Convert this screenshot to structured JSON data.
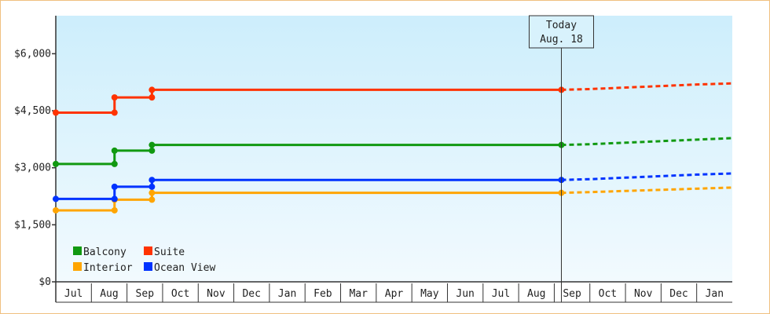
{
  "chart_data": {
    "type": "line",
    "title": "",
    "xlabel": "",
    "ylabel": "",
    "ylim": [
      0,
      7000
    ],
    "y_ticks": [
      0,
      1500,
      3000,
      4500,
      6000
    ],
    "y_tick_labels": [
      "$0",
      "$1,500",
      "$3,000",
      "$4,500",
      "$6,000"
    ],
    "x_tick_labels": [
      "Jul",
      "Aug",
      "Sep",
      "Oct",
      "Nov",
      "Dec",
      "Jan",
      "Feb",
      "Mar",
      "Apr",
      "May",
      "Jun",
      "Jul",
      "Aug",
      "Sep",
      "Oct",
      "Nov",
      "Dec",
      "Jan"
    ],
    "x_range": [
      0,
      19
    ],
    "step_lines": true,
    "grid": false,
    "background_gradient": [
      "#cdeefc",
      "#f2fafe"
    ],
    "today": {
      "label": "Today",
      "date": "Aug. 18",
      "x": 14.2
    },
    "legend": {
      "placement": "bottom-left",
      "columns": 2
    },
    "series": [
      {
        "name": "Balcony",
        "color": "#119911",
        "points": [
          [
            0,
            3100
          ],
          [
            1.65,
            3100
          ],
          [
            1.65,
            3450
          ],
          [
            2.7,
            3450
          ],
          [
            2.7,
            3600
          ],
          [
            14.2,
            3600
          ]
        ],
        "forecast": [
          [
            14.2,
            3600
          ],
          [
            15,
            3620
          ],
          [
            16,
            3660
          ],
          [
            17,
            3700
          ],
          [
            18,
            3740
          ],
          [
            19,
            3780
          ]
        ]
      },
      {
        "name": "Suite",
        "color": "#ff3300",
        "points": [
          [
            0,
            4450
          ],
          [
            1.65,
            4450
          ],
          [
            1.65,
            4850
          ],
          [
            2.7,
            4850
          ],
          [
            2.7,
            5050
          ],
          [
            14.2,
            5050
          ]
        ],
        "forecast": [
          [
            14.2,
            5050
          ],
          [
            15,
            5070
          ],
          [
            16,
            5110
          ],
          [
            17,
            5150
          ],
          [
            18,
            5190
          ],
          [
            19,
            5220
          ]
        ]
      },
      {
        "name": "Interior",
        "color": "#ffa500",
        "points": [
          [
            0,
            1880
          ],
          [
            1.65,
            1880
          ],
          [
            1.65,
            2160
          ],
          [
            2.7,
            2160
          ],
          [
            2.7,
            2340
          ],
          [
            14.2,
            2340
          ]
        ],
        "forecast": [
          [
            14.2,
            2340
          ],
          [
            15,
            2360
          ],
          [
            16,
            2390
          ],
          [
            17,
            2420
          ],
          [
            18,
            2450
          ],
          [
            19,
            2480
          ]
        ]
      },
      {
        "name": "Ocean View",
        "color": "#0033ff",
        "points": [
          [
            0,
            2180
          ],
          [
            1.65,
            2180
          ],
          [
            1.65,
            2500
          ],
          [
            2.7,
            2500
          ],
          [
            2.7,
            2680
          ],
          [
            14.2,
            2680
          ]
        ],
        "forecast": [
          [
            14.2,
            2680
          ],
          [
            15,
            2700
          ],
          [
            16,
            2740
          ],
          [
            17,
            2780
          ],
          [
            18,
            2820
          ],
          [
            19,
            2850
          ]
        ]
      }
    ]
  }
}
